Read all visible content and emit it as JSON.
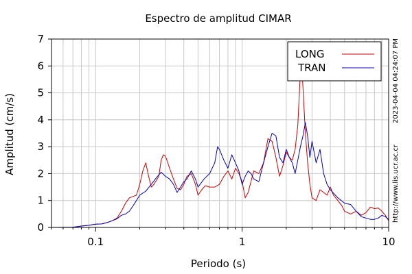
{
  "chart_data": {
    "type": "line",
    "title": "Espectro de amplitud CIMAR",
    "xlabel": "Periodo (s)",
    "ylabel": "Amplitud (cm/s)",
    "x_scale": "log",
    "xlim": [
      0.05,
      10
    ],
    "ylim": [
      0,
      7
    ],
    "x_ticks": [
      0.1,
      1,
      10
    ],
    "x_tick_labels": [
      "0.1",
      "1",
      "10"
    ],
    "y_ticks": [
      0,
      1,
      2,
      3,
      4,
      5,
      6,
      7
    ],
    "y_tick_labels": [
      "0",
      "1",
      "2",
      "3",
      "4",
      "5",
      "6",
      "7"
    ],
    "grid": true,
    "legend_position": "top-right",
    "side_labels": [
      "2023-04-04 04:24:07 PM",
      "http://www.lis.ucr.ac.cr"
    ],
    "series": [
      {
        "name": "LONG",
        "color": "#cc0000",
        "points": [
          [
            0.05,
            0.0
          ],
          [
            0.07,
            0.0
          ],
          [
            0.08,
            0.05
          ],
          [
            0.09,
            0.08
          ],
          [
            0.1,
            0.12
          ],
          [
            0.11,
            0.13
          ],
          [
            0.12,
            0.18
          ],
          [
            0.13,
            0.25
          ],
          [
            0.14,
            0.35
          ],
          [
            0.15,
            0.6
          ],
          [
            0.16,
            0.9
          ],
          [
            0.17,
            1.1
          ],
          [
            0.18,
            1.15
          ],
          [
            0.19,
            1.2
          ],
          [
            0.2,
            1.6
          ],
          [
            0.21,
            2.1
          ],
          [
            0.22,
            2.4
          ],
          [
            0.23,
            1.9
          ],
          [
            0.24,
            1.5
          ],
          [
            0.25,
            1.6
          ],
          [
            0.27,
            1.9
          ],
          [
            0.28,
            2.5
          ],
          [
            0.29,
            2.7
          ],
          [
            0.3,
            2.65
          ],
          [
            0.32,
            2.2
          ],
          [
            0.34,
            1.8
          ],
          [
            0.36,
            1.45
          ],
          [
            0.38,
            1.4
          ],
          [
            0.4,
            1.6
          ],
          [
            0.42,
            1.9
          ],
          [
            0.45,
            2.0
          ],
          [
            0.48,
            1.6
          ],
          [
            0.5,
            1.2
          ],
          [
            0.53,
            1.4
          ],
          [
            0.56,
            1.55
          ],
          [
            0.6,
            1.5
          ],
          [
            0.65,
            1.5
          ],
          [
            0.7,
            1.6
          ],
          [
            0.75,
            1.9
          ],
          [
            0.8,
            2.1
          ],
          [
            0.85,
            1.8
          ],
          [
            0.9,
            2.2
          ],
          [
            0.95,
            2.0
          ],
          [
            1.0,
            1.7
          ],
          [
            1.05,
            1.1
          ],
          [
            1.1,
            1.3
          ],
          [
            1.2,
            2.1
          ],
          [
            1.3,
            2.0
          ],
          [
            1.4,
            2.4
          ],
          [
            1.5,
            3.3
          ],
          [
            1.6,
            3.2
          ],
          [
            1.7,
            2.6
          ],
          [
            1.8,
            1.9
          ],
          [
            1.9,
            2.3
          ],
          [
            2.0,
            2.8
          ],
          [
            2.1,
            2.6
          ],
          [
            2.2,
            2.5
          ],
          [
            2.3,
            2.9
          ],
          [
            2.4,
            3.8
          ],
          [
            2.5,
            5.8
          ],
          [
            2.55,
            6.1
          ],
          [
            2.6,
            5.2
          ],
          [
            2.7,
            3.5
          ],
          [
            2.8,
            2.4
          ],
          [
            2.9,
            1.6
          ],
          [
            3.0,
            1.1
          ],
          [
            3.2,
            1.0
          ],
          [
            3.4,
            1.4
          ],
          [
            3.6,
            1.3
          ],
          [
            3.8,
            1.2
          ],
          [
            4.0,
            1.5
          ],
          [
            4.2,
            1.2
          ],
          [
            4.5,
            1.0
          ],
          [
            4.8,
            0.8
          ],
          [
            5.0,
            0.6
          ],
          [
            5.5,
            0.5
          ],
          [
            6.0,
            0.6
          ],
          [
            6.5,
            0.45
          ],
          [
            7.0,
            0.55
          ],
          [
            7.5,
            0.75
          ],
          [
            8.0,
            0.7
          ],
          [
            8.5,
            0.72
          ],
          [
            9.0,
            0.6
          ],
          [
            9.5,
            0.45
          ],
          [
            10.0,
            0.25
          ]
        ]
      },
      {
        "name": "TRAN",
        "color": "#0000bb",
        "points": [
          [
            0.05,
            0.0
          ],
          [
            0.07,
            0.01
          ],
          [
            0.08,
            0.05
          ],
          [
            0.09,
            0.08
          ],
          [
            0.1,
            0.12
          ],
          [
            0.11,
            0.13
          ],
          [
            0.12,
            0.18
          ],
          [
            0.13,
            0.25
          ],
          [
            0.14,
            0.32
          ],
          [
            0.15,
            0.45
          ],
          [
            0.16,
            0.5
          ],
          [
            0.17,
            0.6
          ],
          [
            0.18,
            0.8
          ],
          [
            0.19,
            1.0
          ],
          [
            0.2,
            1.2
          ],
          [
            0.22,
            1.35
          ],
          [
            0.24,
            1.6
          ],
          [
            0.26,
            1.85
          ],
          [
            0.28,
            2.05
          ],
          [
            0.3,
            1.9
          ],
          [
            0.32,
            1.8
          ],
          [
            0.34,
            1.6
          ],
          [
            0.36,
            1.3
          ],
          [
            0.38,
            1.5
          ],
          [
            0.4,
            1.7
          ],
          [
            0.42,
            1.8
          ],
          [
            0.45,
            2.1
          ],
          [
            0.48,
            1.8
          ],
          [
            0.5,
            1.5
          ],
          [
            0.55,
            1.8
          ],
          [
            0.6,
            2.0
          ],
          [
            0.65,
            2.4
          ],
          [
            0.68,
            3.0
          ],
          [
            0.7,
            2.9
          ],
          [
            0.75,
            2.5
          ],
          [
            0.8,
            2.2
          ],
          [
            0.85,
            2.7
          ],
          [
            0.9,
            2.4
          ],
          [
            0.95,
            2.1
          ],
          [
            1.0,
            1.6
          ],
          [
            1.05,
            1.9
          ],
          [
            1.1,
            2.1
          ],
          [
            1.15,
            2.0
          ],
          [
            1.2,
            1.8
          ],
          [
            1.3,
            1.7
          ],
          [
            1.4,
            2.4
          ],
          [
            1.5,
            3.0
          ],
          [
            1.6,
            3.5
          ],
          [
            1.7,
            3.4
          ],
          [
            1.8,
            2.6
          ],
          [
            1.9,
            2.4
          ],
          [
            2.0,
            2.9
          ],
          [
            2.1,
            2.6
          ],
          [
            2.2,
            2.4
          ],
          [
            2.3,
            2.0
          ],
          [
            2.4,
            2.5
          ],
          [
            2.5,
            3.0
          ],
          [
            2.6,
            3.4
          ],
          [
            2.7,
            3.9
          ],
          [
            2.8,
            3.4
          ],
          [
            2.9,
            2.6
          ],
          [
            3.0,
            3.2
          ],
          [
            3.2,
            2.4
          ],
          [
            3.4,
            2.9
          ],
          [
            3.6,
            2.0
          ],
          [
            3.8,
            1.6
          ],
          [
            4.0,
            1.4
          ],
          [
            4.5,
            1.1
          ],
          [
            5.0,
            0.9
          ],
          [
            5.5,
            0.85
          ],
          [
            6.0,
            0.6
          ],
          [
            6.5,
            0.4
          ],
          [
            7.0,
            0.35
          ],
          [
            7.5,
            0.3
          ],
          [
            8.0,
            0.3
          ],
          [
            8.5,
            0.35
          ],
          [
            9.0,
            0.45
          ],
          [
            9.5,
            0.4
          ],
          [
            10.0,
            0.3
          ]
        ]
      }
    ]
  }
}
